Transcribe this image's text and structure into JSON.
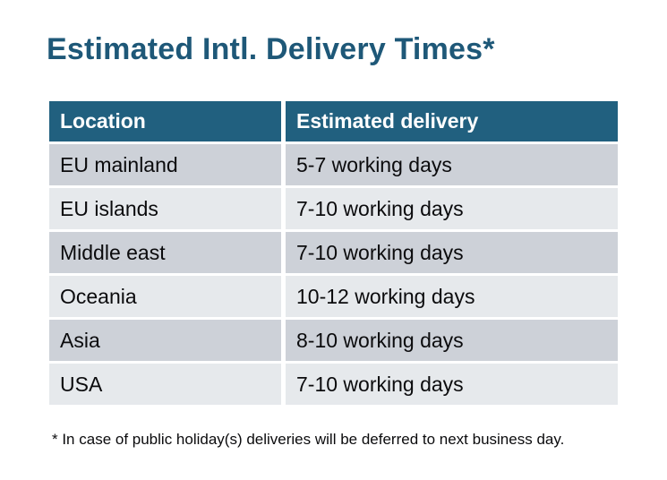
{
  "page": {
    "title": "Estimated Intl. Delivery Times*",
    "footnote": "* In case of public holiday(s) deliveries will be deferred to next business day."
  },
  "colors": {
    "title_text": "#1E5878",
    "header_bg": "#21607F",
    "header_text": "#FFFFFF",
    "row_dark_bg": "#CDD1D8",
    "row_light_bg": "#E6E9EC",
    "cell_text": "#0B0B0D",
    "page_bg": "#FFFFFF"
  },
  "table": {
    "headers": [
      "Location",
      "Estimated delivery"
    ],
    "rows": [
      {
        "location": "EU mainland",
        "delivery": "5-7 working days"
      },
      {
        "location": "EU islands",
        "delivery": "7-10 working days"
      },
      {
        "location": "Middle east",
        "delivery": "7-10 working days"
      },
      {
        "location": "Oceania",
        "delivery": "10-12 working days"
      },
      {
        "location": "Asia",
        "delivery": "8-10 working days"
      },
      {
        "location": "USA",
        "delivery": "7-10 working days"
      }
    ]
  }
}
